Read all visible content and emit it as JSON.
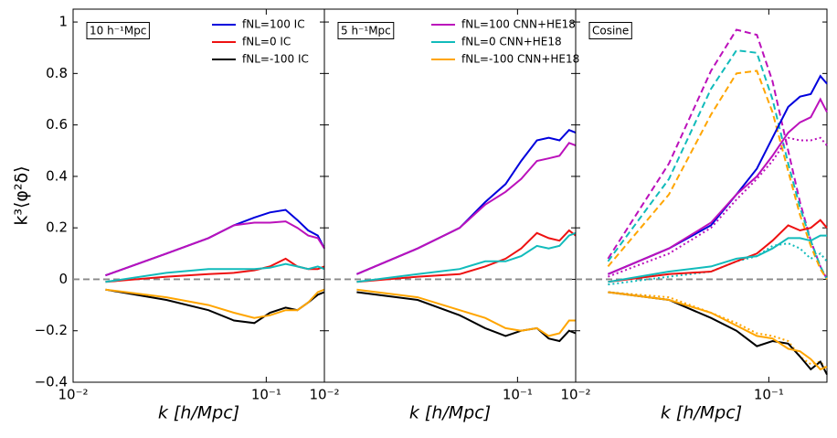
{
  "chart_data": [
    {
      "type": "line",
      "annotation": "10 h⁻¹Mpc",
      "ylabel": "k³⟨φ²δ⟩",
      "xlabel": "k [h/Mpc]",
      "xlim": [
        0.01,
        0.2
      ],
      "ylim": [
        -0.4,
        1.05
      ],
      "log_x": true,
      "hline": 0,
      "legend": "upper right",
      "xticks": [
        {
          "value": 0.01,
          "label": "10⁻²"
        },
        {
          "value": 0.1,
          "label": "10⁻¹"
        }
      ],
      "yticks": [
        {
          "value": -0.4,
          "label": "−0.4"
        },
        {
          "value": -0.2,
          "label": "−0.2"
        },
        0.0,
        0.2,
        0.4,
        0.6,
        0.8,
        1.0
      ],
      "x": [
        0.0147,
        0.0304,
        0.0502,
        0.068,
        0.0867,
        0.1045,
        0.126,
        0.145,
        0.165,
        0.185,
        0.2
      ],
      "series": [
        {
          "name": "fNL=100 IC",
          "color": "#0000dd",
          "style": "solid",
          "values": [
            0.015,
            0.1,
            0.16,
            0.21,
            0.24,
            0.26,
            0.27,
            0.23,
            0.19,
            0.17,
            0.12
          ]
        },
        {
          "name": "fNL=0 IC",
          "color": "#ee1111",
          "style": "solid",
          "values": [
            -0.01,
            0.01,
            0.02,
            0.025,
            0.035,
            0.05,
            0.08,
            0.05,
            0.04,
            0.04,
            0.05
          ]
        },
        {
          "name": "fNL=-100 IC",
          "color": "#000000",
          "style": "solid",
          "values": [
            -0.04,
            -0.08,
            -0.12,
            -0.16,
            -0.17,
            -0.13,
            -0.11,
            -0.12,
            -0.09,
            -0.06,
            -0.05
          ]
        },
        {
          "color": "#bb11bb",
          "style": "solid",
          "values": [
            0.015,
            0.1,
            0.16,
            0.21,
            0.22,
            0.22,
            0.225,
            0.2,
            0.17,
            0.16,
            0.12
          ]
        },
        {
          "color": "#11bbbb",
          "style": "solid",
          "values": [
            -0.01,
            0.025,
            0.04,
            0.04,
            0.04,
            0.045,
            0.06,
            0.05,
            0.04,
            0.05,
            0.04
          ]
        },
        {
          "color": "#ffa500",
          "style": "solid",
          "values": [
            -0.04,
            -0.07,
            -0.1,
            -0.13,
            -0.15,
            -0.14,
            -0.12,
            -0.12,
            -0.09,
            -0.05,
            -0.04
          ]
        }
      ]
    },
    {
      "type": "line",
      "annotation": "5 h⁻¹Mpc",
      "xlabel": "k [h/Mpc]",
      "xlim": [
        0.01,
        0.2
      ],
      "ylim": [
        -0.4,
        1.05
      ],
      "log_x": true,
      "hline": 0,
      "legend": "upper right",
      "xticks": [
        {
          "value": 0.01,
          "label": "10⁻²"
        },
        {
          "value": 0.1,
          "label": "10⁻¹"
        }
      ],
      "x": [
        0.0147,
        0.0304,
        0.0502,
        0.068,
        0.0867,
        0.1045,
        0.126,
        0.145,
        0.165,
        0.185,
        0.2
      ],
      "series": [
        {
          "color": "#0000dd",
          "style": "solid",
          "values": [
            0.02,
            0.12,
            0.2,
            0.3,
            0.37,
            0.46,
            0.54,
            0.55,
            0.54,
            0.58,
            0.57
          ]
        },
        {
          "color": "#ee1111",
          "style": "solid",
          "values": [
            -0.01,
            0.01,
            0.02,
            0.05,
            0.08,
            0.12,
            0.18,
            0.16,
            0.15,
            0.19,
            0.17
          ]
        },
        {
          "color": "#000000",
          "style": "solid",
          "values": [
            -0.05,
            -0.08,
            -0.14,
            -0.19,
            -0.22,
            -0.2,
            -0.19,
            -0.23,
            -0.24,
            -0.2,
            -0.21
          ]
        },
        {
          "name": "fNL=100 CNN+HE18",
          "color": "#bb11bb",
          "style": "solid",
          "values": [
            0.02,
            0.12,
            0.2,
            0.29,
            0.34,
            0.39,
            0.46,
            0.47,
            0.48,
            0.53,
            0.52
          ]
        },
        {
          "name": "fNL=0 CNN+HE18",
          "color": "#11bbbb",
          "style": "solid",
          "values": [
            -0.01,
            0.02,
            0.04,
            0.07,
            0.07,
            0.09,
            0.13,
            0.12,
            0.13,
            0.17,
            0.18
          ]
        },
        {
          "name": "fNL=-100 CNN+HE18",
          "color": "#ffa500",
          "style": "solid",
          "values": [
            -0.04,
            -0.07,
            -0.12,
            -0.15,
            -0.19,
            -0.2,
            -0.19,
            -0.22,
            -0.21,
            -0.16,
            -0.16
          ]
        }
      ]
    },
    {
      "type": "line",
      "annotation": "Cosine",
      "xlabel": "k [h/Mpc]",
      "xlim": [
        0.01,
        0.2
      ],
      "ylim": [
        -0.4,
        1.05
      ],
      "log_x": true,
      "hline": 0,
      "xticks": [
        {
          "value": 0.01,
          "label": "10⁻²"
        },
        {
          "value": 0.1,
          "label": "10⁻¹"
        }
      ],
      "x": [
        0.0147,
        0.0304,
        0.0502,
        0.068,
        0.0867,
        0.1045,
        0.126,
        0.145,
        0.165,
        0.185,
        0.2
      ],
      "series": [
        {
          "color": "#bb11bb",
          "style": "dashed",
          "values": [
            0.08,
            0.45,
            0.81,
            0.97,
            0.95,
            0.77,
            0.5,
            0.3,
            0.15,
            0.05,
            0.0
          ]
        },
        {
          "color": "#11bbbb",
          "style": "dashed",
          "values": [
            0.07,
            0.39,
            0.74,
            0.89,
            0.88,
            0.7,
            0.45,
            0.28,
            0.15,
            0.05,
            0.0
          ]
        },
        {
          "color": "#ffa500",
          "style": "dashed",
          "values": [
            0.05,
            0.33,
            0.64,
            0.8,
            0.81,
            0.65,
            0.42,
            0.25,
            0.13,
            0.04,
            0.0
          ]
        },
        {
          "color": "#bb11bb",
          "style": "dotted",
          "values": [
            0.01,
            0.1,
            0.2,
            0.31,
            0.39,
            0.46,
            0.55,
            0.54,
            0.54,
            0.55,
            0.52
          ]
        },
        {
          "color": "#11bbbb",
          "style": "dotted",
          "values": [
            -0.02,
            0.01,
            0.03,
            0.07,
            0.09,
            0.13,
            0.14,
            0.12,
            0.08,
            0.1,
            0.07
          ]
        },
        {
          "color": "#ffa500",
          "style": "dotted",
          "values": [
            -0.05,
            -0.07,
            -0.13,
            -0.17,
            -0.21,
            -0.22,
            -0.24,
            -0.3,
            -0.33,
            -0.32,
            -0.35
          ]
        },
        {
          "color": "#0000dd",
          "style": "solid",
          "values": [
            0.02,
            0.12,
            0.21,
            0.33,
            0.43,
            0.55,
            0.67,
            0.71,
            0.72,
            0.79,
            0.76
          ]
        },
        {
          "color": "#ee1111",
          "style": "solid",
          "values": [
            -0.01,
            0.02,
            0.03,
            0.07,
            0.1,
            0.15,
            0.21,
            0.19,
            0.2,
            0.23,
            0.2
          ]
        },
        {
          "color": "#000000",
          "style": "solid",
          "values": [
            -0.05,
            -0.08,
            -0.15,
            -0.2,
            -0.26,
            -0.24,
            -0.25,
            -0.3,
            -0.35,
            -0.32,
            -0.37
          ]
        },
        {
          "color": "#bb11bb",
          "style": "solid",
          "values": [
            0.02,
            0.12,
            0.22,
            0.33,
            0.4,
            0.48,
            0.57,
            0.61,
            0.63,
            0.7,
            0.65
          ]
        },
        {
          "color": "#11bbbb",
          "style": "solid",
          "values": [
            -0.01,
            0.03,
            0.05,
            0.08,
            0.09,
            0.12,
            0.16,
            0.16,
            0.15,
            0.17,
            0.17
          ]
        },
        {
          "color": "#ffa500",
          "style": "solid",
          "values": [
            -0.05,
            -0.08,
            -0.13,
            -0.18,
            -0.22,
            -0.23,
            -0.27,
            -0.28,
            -0.31,
            -0.35,
            -0.34
          ]
        }
      ]
    }
  ]
}
